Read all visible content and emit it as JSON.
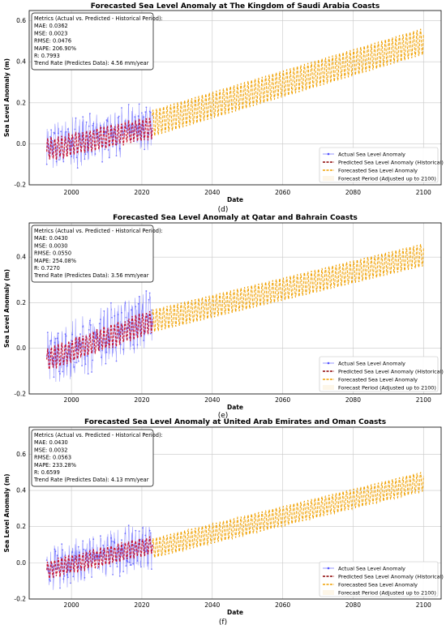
{
  "chart_data": [
    {
      "type": "line",
      "title": "Forecasted Sea Level Anomaly at The Kingdom of Saudi Arabia Coasts",
      "xlabel": "Date",
      "ylabel": "Sea Level Anomaly (m)",
      "xlim": [
        1988,
        2105
      ],
      "ylim": [
        -0.2,
        0.65
      ],
      "xticks": [
        "2000",
        "2020",
        "2040",
        "2060",
        "2080",
        "2100"
      ],
      "yticks": [
        "-0.2",
        "0.0",
        "0.2",
        "0.4",
        "0.6"
      ],
      "grid": true,
      "legend_position": "lower-right",
      "caption": "(d)",
      "metrics": [
        "Metrics (Actual vs. Predicted - Historical Period):",
        "MAE: 0.0362",
        "MSE: 0.0023",
        "RMSE: 0.0476",
        "MAPE: 206.90%",
        "R: 0.7993",
        "Trend Rate (Predictes Data): 4.56 mm/year"
      ],
      "series": [
        {
          "name": "Actual Sea Level Anomaly",
          "style": "blue-marker-line",
          "x_range": [
            1993,
            2023
          ],
          "trend": [
            -0.02,
            0.09
          ],
          "noise": 0.08
        },
        {
          "name": "Predicted Sea Level Anomaly (Historical)",
          "style": "dashed-darkred",
          "x_range": [
            1993,
            2023
          ],
          "trend": [
            -0.03,
            0.08
          ],
          "amplitude": 0.05
        },
        {
          "name": "Forecasted Sea Level Anomaly",
          "style": "dashed-orange",
          "x_range": [
            2023,
            2100
          ],
          "trend": [
            0.1,
            0.5
          ],
          "amplitude": 0.065
        },
        {
          "name": "Forecast Period (Adjusted up to 2100)",
          "style": "shaded"
        }
      ]
    },
    {
      "type": "line",
      "title": "Forecasted Sea Level Anomaly at Qatar and Bahrain Coasts",
      "xlabel": "Date",
      "ylabel": "Sea Level Anomaly (m)",
      "xlim": [
        1988,
        2105
      ],
      "ylim": [
        -0.2,
        0.55
      ],
      "xticks": [
        "2000",
        "2020",
        "2040",
        "2060",
        "2080",
        "2100"
      ],
      "yticks": [
        "-0.2",
        "0.0",
        "0.2",
        "0.4"
      ],
      "grid": true,
      "legend_position": "lower-right",
      "caption": "(e)",
      "metrics": [
        "Metrics (Actual vs. Predicted - Historical Period):",
        "MAE: 0.0430",
        "MSE: 0.0030",
        "RMSE: 0.0550",
        "MAPE: 254.08%",
        "R: 0.7270",
        "Trend Rate (Predictes Data): 3.56 mm/year"
      ],
      "series": [
        {
          "name": "Actual Sea Level Anomaly",
          "style": "blue-marker-line",
          "x_range": [
            1993,
            2023
          ],
          "trend": [
            -0.05,
            0.14
          ],
          "noise": 0.09
        },
        {
          "name": "Predicted Sea Level Anomaly (Historical)",
          "style": "dashed-darkred",
          "x_range": [
            1993,
            2023
          ],
          "trend": [
            -0.05,
            0.12
          ],
          "amplitude": 0.045
        },
        {
          "name": "Forecasted Sea Level Anomaly",
          "style": "dashed-orange",
          "x_range": [
            2023,
            2100
          ],
          "trend": [
            0.12,
            0.41
          ],
          "amplitude": 0.05
        },
        {
          "name": "Forecast Period (Adjusted up to 2100)",
          "style": "shaded"
        }
      ]
    },
    {
      "type": "line",
      "title": "Forecasted Sea Level Anomaly at United Arab Emirates and Oman Coasts",
      "xlabel": "Date",
      "ylabel": "Sea Level Anomaly (m)",
      "xlim": [
        1988,
        2105
      ],
      "ylim": [
        -0.2,
        0.75
      ],
      "xticks": [
        "2000",
        "2020",
        "2040",
        "2060",
        "2080",
        "2100"
      ],
      "yticks": [
        "-0.2",
        "0.0",
        "0.2",
        "0.4",
        "0.6"
      ],
      "grid": true,
      "legend_position": "lower-right",
      "caption": "(f)",
      "metrics": [
        "Metrics (Actual vs. Predicted - Historical Period):",
        "MAE: 0.0430",
        "MSE: 0.0032",
        "RMSE: 0.0563",
        "MAPE: 233.28%",
        "R: 0.6599",
        "Trend Rate (Predictes Data): 4.13 mm/year"
      ],
      "series": [
        {
          "name": "Actual Sea Level Anomaly",
          "style": "blue-marker-line",
          "x_range": [
            1993,
            2023
          ],
          "trend": [
            -0.03,
            0.1
          ],
          "noise": 0.09
        },
        {
          "name": "Predicted Sea Level Anomaly (Historical)",
          "style": "dashed-darkred",
          "x_range": [
            1993,
            2023
          ],
          "trend": [
            -0.04,
            0.1
          ],
          "amplitude": 0.045
        },
        {
          "name": "Forecasted Sea Level Anomaly",
          "style": "dashed-orange",
          "x_range": [
            2023,
            2100
          ],
          "trend": [
            0.08,
            0.45
          ],
          "amplitude": 0.055
        },
        {
          "name": "Forecast Period (Adjusted up to 2100)",
          "style": "shaded"
        }
      ]
    }
  ]
}
